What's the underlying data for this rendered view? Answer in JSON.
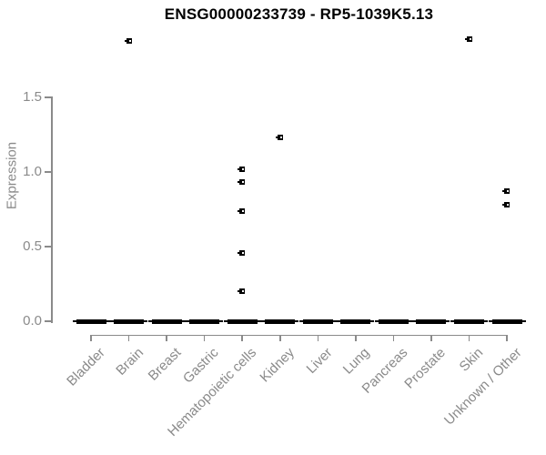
{
  "chart_data": {
    "type": "scatter",
    "subtype": "strip-plot-with-zero-bars",
    "title": "ENSG00000233739 - RP5-1039K5.13",
    "xlabel": "",
    "ylabel": "Expression",
    "ylim": [
      0,
      1.95
    ],
    "grid": false,
    "legend": "none",
    "yticks": [
      {
        "value": 0.0,
        "label": "0.0"
      },
      {
        "value": 0.5,
        "label": "0.5"
      },
      {
        "value": 1.0,
        "label": "1.0"
      },
      {
        "value": 1.5,
        "label": "1.5"
      }
    ],
    "categories": [
      "Bladder",
      "Brain",
      "Breast",
      "Gastric",
      "Hematopoietic cells",
      "Kidney",
      "Liver",
      "Lung",
      "Pancreas",
      "Prostate",
      "Skin",
      "Unknown / Other"
    ],
    "baseline": {
      "value": 0.0,
      "description": "dense cluster of samples at zero expression in every category, drawn as a thick black bar"
    },
    "outliers": [
      {
        "category": "Brain",
        "values": [
          1.88
        ]
      },
      {
        "category": "Hematopoietic cells",
        "values": [
          1.02,
          0.93,
          0.74,
          0.46,
          0.2
        ]
      },
      {
        "category": "Kidney",
        "values": [
          1.23
        ]
      },
      {
        "category": "Skin",
        "values": [
          1.89
        ]
      },
      {
        "category": "Unknown / Other",
        "values": [
          0.87,
          0.78
        ]
      }
    ]
  },
  "colors": {
    "background": "#ffffff",
    "title_text": "#000000",
    "axis_line": "#8a8a8a",
    "tick_label": "#8a8a8a",
    "marker": "#000000"
  }
}
